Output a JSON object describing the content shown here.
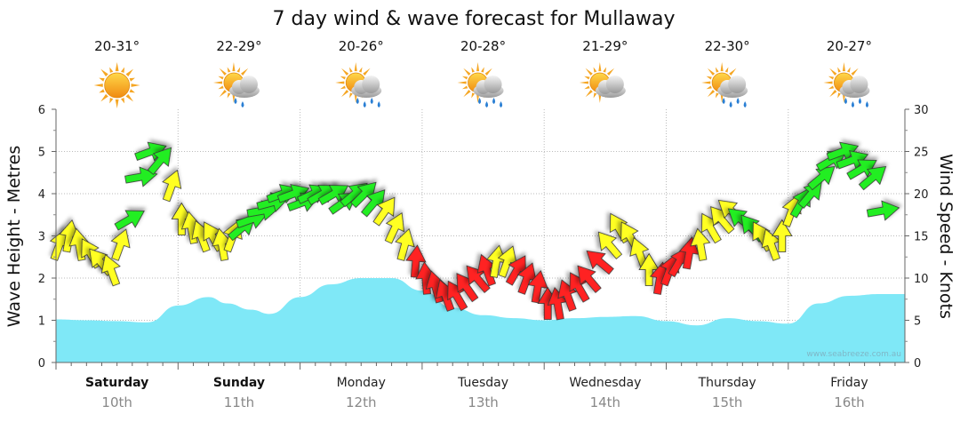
{
  "chart_data": {
    "type": "area",
    "title": "7 day wind & wave forecast for Mullaway",
    "ylabel_left": "Wave Height - Metres",
    "ylabel_right": "Wind Speed - Knots",
    "ylim_left": [
      0,
      6
    ],
    "ylim_right": [
      0,
      30
    ],
    "yticks_left": [
      "0",
      "1",
      "2",
      "3",
      "4",
      "5",
      "6"
    ],
    "yticks_right": [
      "0",
      "5",
      "10",
      "15",
      "20",
      "25",
      "30"
    ],
    "grid": true,
    "credit": "www.seabreeze.com.au",
    "days": [
      {
        "name": "Saturday",
        "date": "10th",
        "temp": "20-31°",
        "weather": "sunny-icon",
        "bold": true
      },
      {
        "name": "Sunday",
        "date": "11th",
        "temp": "22-29°",
        "weather": "showers-icon",
        "bold": true
      },
      {
        "name": "Monday",
        "date": "12th",
        "temp": "20-26°",
        "weather": "rain-icon",
        "bold": false
      },
      {
        "name": "Tuesday",
        "date": "13th",
        "temp": "20-28°",
        "weather": "rain-icon",
        "bold": false
      },
      {
        "name": "Wednesday",
        "date": "14th",
        "temp": "21-29°",
        "weather": "partly-cloudy-icon",
        "bold": false
      },
      {
        "name": "Thursday",
        "date": "15th",
        "temp": "22-30°",
        "weather": "rain-icon",
        "bold": false
      },
      {
        "name": "Friday",
        "date": "16th",
        "temp": "20-27°",
        "weather": "rain-icon",
        "bold": false
      }
    ],
    "wave": {
      "name": "Wave Height",
      "color": "#7fe8f7",
      "x_days": [
        0,
        0.25,
        0.5,
        0.75,
        1.0,
        1.25,
        1.4,
        1.6,
        1.75,
        2.0,
        2.25,
        2.5,
        2.75,
        3.0,
        3.25,
        3.5,
        3.75,
        4.0,
        4.25,
        4.5,
        4.75,
        5.0,
        5.25,
        5.5,
        5.75,
        6.0,
        6.25,
        6.5,
        6.75
      ],
      "values": [
        1.02,
        1.0,
        0.98,
        0.95,
        1.35,
        1.55,
        1.4,
        1.25,
        1.15,
        1.55,
        1.85,
        2.0,
        2.0,
        1.7,
        1.3,
        1.12,
        1.05,
        1.0,
        1.05,
        1.08,
        1.1,
        0.98,
        0.88,
        1.05,
        0.98,
        0.92,
        1.4,
        1.58,
        1.62
      ]
    },
    "wind": {
      "name": "Wind Speed",
      "colors": {
        "weak": "#ffff22",
        "medium": "#22ee22",
        "strong": "#ff2222"
      },
      "x_days": [
        0,
        0.08,
        0.16,
        0.25,
        0.33,
        0.42,
        0.5,
        0.58,
        0.67,
        0.75,
        0.83,
        0.92,
        1.0,
        1.08,
        1.16,
        1.25,
        1.33,
        1.42,
        1.5,
        1.58,
        1.67,
        1.75,
        1.83,
        1.92,
        2.0,
        2.08,
        2.16,
        2.25,
        2.33,
        2.42,
        2.5,
        2.58,
        2.67,
        2.75,
        2.83,
        2.92,
        3.0,
        3.08,
        3.16,
        3.25,
        3.33,
        3.42,
        3.5,
        3.58,
        3.67,
        3.75,
        3.83,
        3.92,
        4.0,
        4.08,
        4.16,
        4.25,
        4.33,
        4.42,
        4.5,
        4.58,
        4.67,
        4.75,
        4.83,
        4.92,
        5.0,
        5.08,
        5.16,
        5.25,
        5.33,
        5.42,
        5.5,
        5.58,
        5.67,
        5.75,
        5.83,
        5.92,
        6.0,
        6.08,
        6.16,
        6.25,
        6.33,
        6.42,
        6.5,
        6.58,
        6.67,
        6.75
      ],
      "speeds": [
        14,
        15,
        14,
        13,
        12,
        11,
        14,
        17,
        22,
        25,
        24,
        21,
        17,
        16,
        15,
        15,
        14,
        15,
        16,
        17,
        18,
        19,
        20,
        20,
        19,
        20,
        20,
        20,
        19,
        20,
        20,
        19,
        18,
        16,
        14,
        12,
        10,
        9,
        8,
        8,
        9,
        10,
        11,
        12,
        12,
        11,
        10,
        9,
        7,
        7,
        8,
        9,
        10,
        12,
        14,
        16,
        15,
        13,
        11,
        10,
        11,
        12,
        13,
        14,
        16,
        17,
        18,
        17,
        16,
        15,
        14,
        15,
        18,
        19,
        20,
        22,
        24,
        25,
        24,
        23,
        22,
        18
      ],
      "levels": [
        "weak",
        "weak",
        "weak",
        "weak",
        "weak",
        "weak",
        "weak",
        "medium",
        "medium",
        "medium",
        "medium",
        "weak",
        "weak",
        "weak",
        "weak",
        "weak",
        "weak",
        "weak",
        "medium",
        "medium",
        "medium",
        "medium",
        "medium",
        "medium",
        "medium",
        "medium",
        "medium",
        "medium",
        "medium",
        "medium",
        "medium",
        "medium",
        "weak",
        "weak",
        "weak",
        "strong",
        "strong",
        "strong",
        "strong",
        "strong",
        "strong",
        "strong",
        "strong",
        "weak",
        "weak",
        "strong",
        "strong",
        "strong",
        "strong",
        "strong",
        "strong",
        "strong",
        "strong",
        "strong",
        "weak",
        "weak",
        "weak",
        "weak",
        "weak",
        "strong",
        "strong",
        "strong",
        "strong",
        "weak",
        "weak",
        "weak",
        "weak",
        "medium",
        "medium",
        "weak",
        "weak",
        "weak",
        "weak",
        "medium",
        "medium",
        "medium",
        "medium",
        "medium",
        "medium",
        "medium",
        "medium",
        "medium"
      ],
      "directions": [
        200,
        190,
        170,
        150,
        140,
        160,
        200,
        240,
        260,
        250,
        220,
        200,
        180,
        170,
        160,
        150,
        170,
        200,
        230,
        250,
        260,
        255,
        250,
        250,
        250,
        245,
        240,
        240,
        235,
        230,
        225,
        220,
        215,
        205,
        195,
        185,
        175,
        165,
        160,
        150,
        145,
        140,
        160,
        190,
        200,
        210,
        200,
        190,
        180,
        170,
        160,
        150,
        140,
        130,
        140,
        150,
        150,
        160,
        180,
        190,
        200,
        210,
        190,
        170,
        150,
        140,
        130,
        130,
        140,
        150,
        160,
        180,
        200,
        210,
        220,
        230,
        240,
        250,
        250,
        240,
        230,
        260
      ]
    }
  }
}
